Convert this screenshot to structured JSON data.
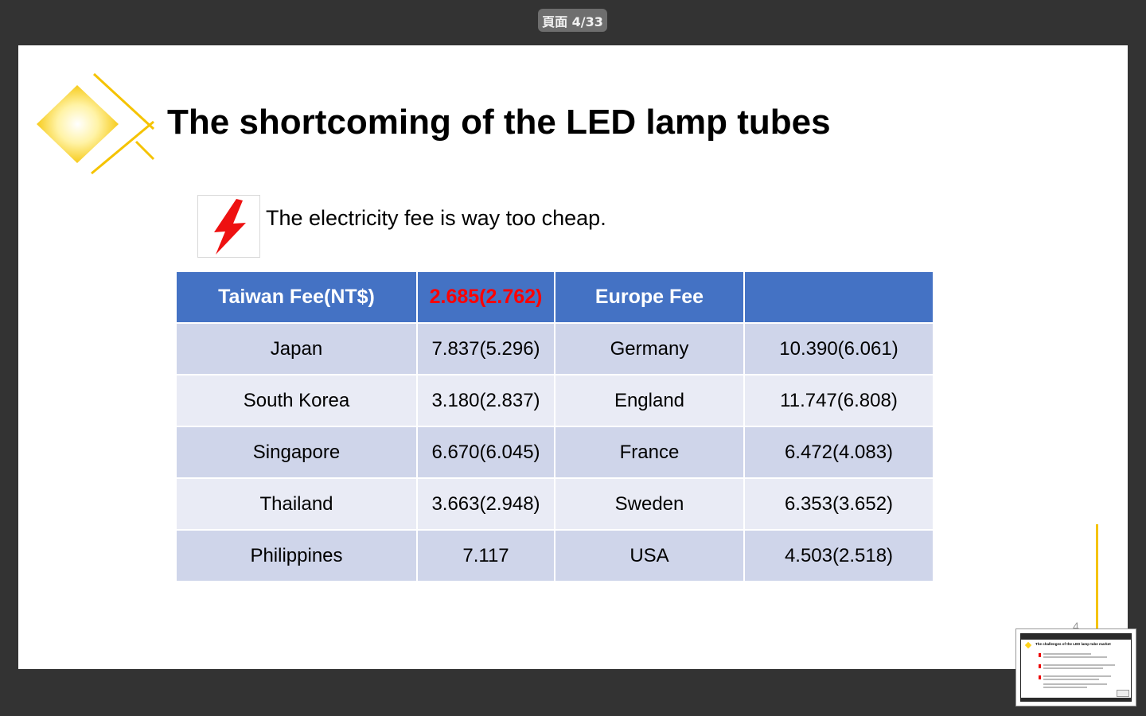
{
  "viewer": {
    "page_indicator": "頁面 4/33"
  },
  "slide": {
    "title": "The shortcoming of the LED lamp tubes",
    "bullet_text": "The electricity fee is way too cheap.",
    "slide_number": "4",
    "colors": {
      "table_header": "#4472c4",
      "row_dark": "#cfd5ea",
      "row_light": "#e9ebf5",
      "highlight": "#ff0000",
      "logo_yellow": "#f5c300"
    },
    "icons": [
      "diamond-logo-icon",
      "lightning-bolt-icon"
    ],
    "table": {
      "header": [
        "Taiwan Fee(NT$)",
        "2.685(2.762)",
        "Europe Fee",
        ""
      ],
      "rows": [
        [
          "Japan",
          "7.837(5.296)",
          "Germany",
          "10.390(6.061)"
        ],
        [
          "South Korea",
          "3.180(2.837)",
          "England",
          "11.747(6.808)"
        ],
        [
          "Singapore",
          "6.670(6.045)",
          "France",
          "6.472(4.083)"
        ],
        [
          "Thailand",
          "3.663(2.948)",
          "Sweden",
          "6.353(3.652)"
        ],
        [
          "Philippines",
          "7.117",
          "USA",
          "4.503(2.518)"
        ]
      ]
    }
  },
  "thumbnail": {
    "title": "The challenges of the LED lamp tube market"
  }
}
